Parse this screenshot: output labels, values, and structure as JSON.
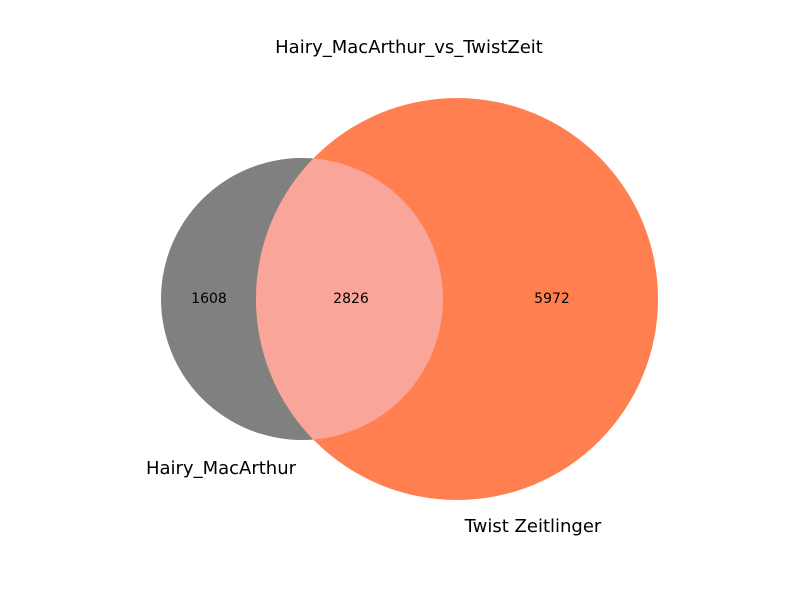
{
  "chart_data": {
    "type": "venn",
    "title": "Hairy_MacArthur_vs_TwistZeit",
    "sets": [
      {
        "name": "Hairy_MacArthur",
        "only_count": 1608,
        "color": "#808080"
      },
      {
        "name": "Twist Zeitlinger",
        "only_count": 5972,
        "color": "#ff7f50"
      }
    ],
    "intersection": {
      "count": 2826,
      "color": "#f9a59a"
    }
  }
}
